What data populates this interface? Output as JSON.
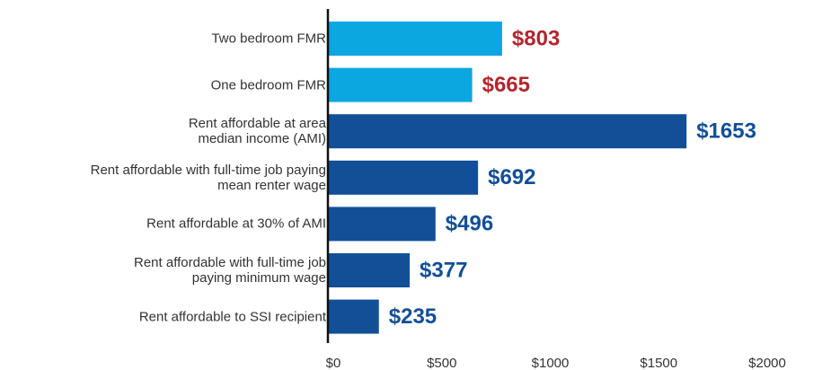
{
  "chart_data": {
    "type": "bar",
    "orientation": "horizontal",
    "categories": [
      "Two bedroom FMR",
      "One bedroom FMR",
      "Rent affordable at area\nmedian income (AMI)",
      "Rent affordable with full-time job paying\nmean renter wage",
      "Rent affordable at 30% of AMI",
      "Rent affordable with full-time job\npaying minimum wage",
      "Rent affordable to SSI recipient"
    ],
    "values": [
      803,
      665,
      1653,
      692,
      496,
      377,
      235
    ],
    "value_labels": [
      "$803",
      "$665",
      "$1653",
      "$692",
      "$496",
      "$377",
      "$235"
    ],
    "colors": [
      "#0ba7e1",
      "#0ba7e1",
      "#124f97",
      "#124f97",
      "#124f97",
      "#124f97",
      "#124f97"
    ],
    "label_colors": [
      "#b3262f",
      "#b3262f",
      "#124f97",
      "#124f97",
      "#124f97",
      "#124f97",
      "#124f97"
    ],
    "xlim": [
      0,
      2000
    ],
    "xticks": [
      {
        "value": 0,
        "label": "$0"
      },
      {
        "value": 500,
        "label": "$500"
      },
      {
        "value": 1000,
        "label": "$1000"
      },
      {
        "value": 1500,
        "label": "$1500"
      },
      {
        "value": 2000,
        "label": "$2000"
      }
    ]
  }
}
